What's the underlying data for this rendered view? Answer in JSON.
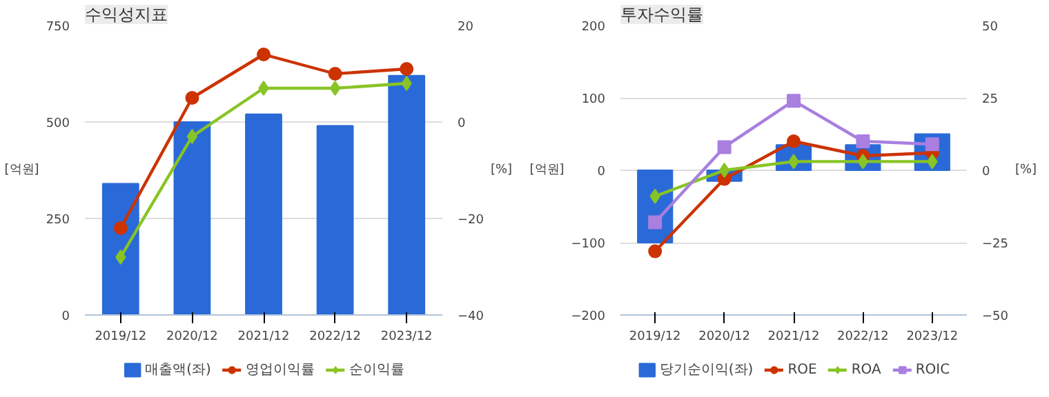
{
  "chart_data": [
    {
      "type": "bar",
      "title": "수익성지표",
      "ylabel": "[억원]",
      "y2label": "[%]",
      "categories": [
        "2019/12",
        "2020/12",
        "2021/12",
        "2022/12",
        "2023/12"
      ],
      "ylim": [
        0,
        750
      ],
      "yticks": [
        0,
        250,
        500,
        750
      ],
      "y2lim": [
        -40,
        20
      ],
      "y2ticks": [
        -40,
        -20,
        0,
        20
      ],
      "grid": "y",
      "legend": "bottom",
      "series": [
        {
          "name": "매출액(좌)",
          "color": "#2a6ad8",
          "values": [
            340,
            500,
            520,
            490,
            620
          ]
        },
        {
          "name": "영업이익률",
          "type": "line",
          "axis": "y2",
          "marker": "circle",
          "color": "#cc3300",
          "values": [
            -22,
            5,
            14,
            10,
            11
          ]
        },
        {
          "name": "순이익률",
          "type": "line",
          "axis": "y2",
          "marker": "diamond",
          "color": "#88c425",
          "values": [
            -28,
            -3,
            7,
            7,
            8
          ]
        }
      ]
    },
    {
      "type": "bar",
      "title": "투자수익률",
      "ylabel": "[억원]",
      "y2label": "[%]",
      "categories": [
        "2019/12",
        "2020/12",
        "2021/12",
        "2022/12",
        "2023/12"
      ],
      "ylim": [
        -200,
        200
      ],
      "yticks": [
        -200,
        -100,
        0,
        100,
        200
      ],
      "y2lim": [
        -50,
        50
      ],
      "y2ticks": [
        -50,
        -25,
        0,
        25,
        50
      ],
      "grid": "y",
      "legend": "bottom",
      "series": [
        {
          "name": "당기순이익(좌)",
          "color": "#2a6ad8",
          "values": [
            -100,
            -15,
            35,
            35,
            50
          ]
        },
        {
          "name": "ROE",
          "type": "line",
          "axis": "y2",
          "marker": "circle",
          "color": "#cc3300",
          "values": [
            -28,
            -3,
            10,
            5,
            6
          ]
        },
        {
          "name": "ROA",
          "type": "line",
          "axis": "y2",
          "marker": "diamond",
          "color": "#88c425",
          "values": [
            -9,
            0,
            3,
            3,
            3
          ]
        },
        {
          "name": "ROIC",
          "type": "line",
          "axis": "y2",
          "marker": "square",
          "color": "#a97fe0",
          "values": [
            -18,
            8,
            24,
            10,
            9
          ]
        }
      ]
    }
  ]
}
